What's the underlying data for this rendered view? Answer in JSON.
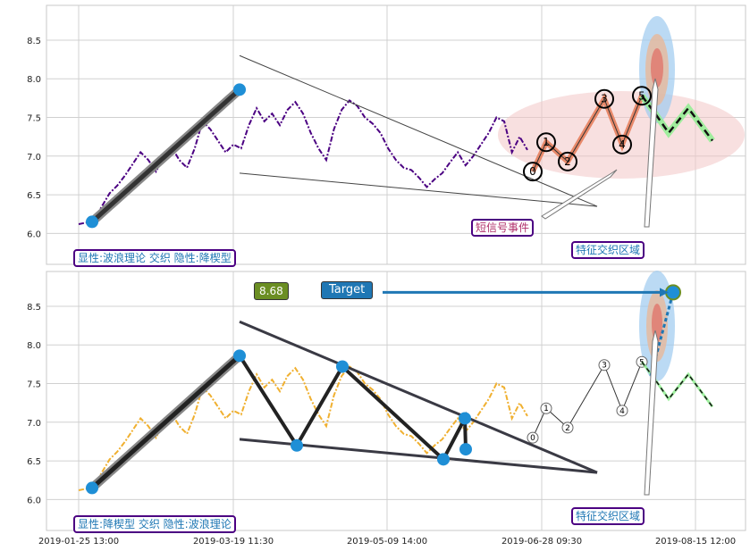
{
  "chart_data": [
    {
      "type": "line",
      "panel": "top",
      "ylim": [
        5.6,
        8.95
      ],
      "yticks": [
        "6.0",
        "6.5",
        "7.0",
        "7.5",
        "8.0",
        "8.5"
      ],
      "grid": true,
      "colors": {
        "price": "#4b0082",
        "impulse": "#e8896a",
        "projection": "#90ee90",
        "zone": "#f3c6c6",
        "marker": "#1f8fd6"
      },
      "series": [
        {
          "values": [
            6.12,
            6.14,
            6.18,
            6.35,
            6.52,
            6.62,
            6.75,
            6.9,
            7.05,
            6.95,
            6.8,
            7.0,
            7.12,
            6.95,
            6.85,
            7.1,
            7.45,
            7.35,
            7.2,
            7.05,
            7.15,
            7.1,
            7.4,
            7.62,
            7.45,
            7.55,
            7.4,
            7.6,
            7.7,
            7.55,
            7.3,
            7.1,
            6.95,
            7.35,
            7.6,
            7.72,
            7.65,
            7.5,
            7.42,
            7.3,
            7.1,
            6.95,
            6.85,
            6.82,
            6.72,
            6.6,
            6.7,
            6.78,
            6.92,
            7.05,
            6.88,
            7.0,
            7.15,
            7.3,
            7.5,
            7.45,
            7.05,
            7.25,
            7.08
          ]
        },
        {
          "values": [
            6.8,
            7.15,
            6.95,
            7.72,
            7.12,
            7.78,
            7.6,
            7.35,
            7.5,
            7.2
          ]
        }
      ],
      "wave_labels": [
        "0",
        "1",
        "2",
        "3",
        "4",
        "5"
      ],
      "wave_values": [
        6.8,
        7.18,
        6.93,
        7.74,
        7.15,
        7.78
      ],
      "trend_upper": [
        8.3,
        6.35
      ],
      "trend_lower": [
        6.78,
        6.35
      ],
      "impulse_line": [
        6.15,
        7.86
      ]
    },
    {
      "type": "line",
      "panel": "bottom",
      "ylim": [
        5.6,
        8.95
      ],
      "yticks": [
        "6.0",
        "6.5",
        "7.0",
        "7.5",
        "8.0",
        "8.5"
      ],
      "xticks": [
        "2019-01-25 13:00",
        "2019-03-19 11:30",
        "2019-05-09 14:00",
        "2019-06-28 09:30",
        "2019-08-15 12:00"
      ],
      "grid": true,
      "colors": {
        "price": "#f0b030",
        "wedge": "#333",
        "marker": "#1f8fd6",
        "target_arrow": "#1f77b4"
      },
      "series": [
        {
          "values": [
            6.12,
            6.14,
            6.18,
            6.35,
            6.52,
            6.62,
            6.75,
            6.9,
            7.05,
            6.95,
            6.8,
            7.0,
            7.12,
            6.95,
            6.85,
            7.1,
            7.45,
            7.35,
            7.2,
            7.05,
            7.15,
            7.1,
            7.4,
            7.62,
            7.45,
            7.55,
            7.4,
            7.6,
            7.7,
            7.55,
            7.3,
            7.1,
            6.95,
            7.35,
            7.6,
            7.72,
            7.65,
            7.5,
            7.42,
            7.3,
            7.1,
            6.95,
            6.85,
            6.82,
            6.72,
            6.6,
            6.7,
            6.78,
            6.92,
            7.05,
            6.88,
            7.0,
            7.15,
            7.3,
            7.5,
            7.45,
            7.05,
            7.25,
            7.08
          ]
        }
      ],
      "wedge_points": [
        6.15,
        7.86,
        6.7,
        7.72,
        6.52,
        7.05,
        6.65
      ],
      "wave_labels": [
        "0",
        "1",
        "2",
        "3",
        "4",
        "5"
      ],
      "target_value": 8.68
    }
  ],
  "top_note": "显性:波浪理论 交织 隐性:降楔型",
  "bottom_note": "显性:降楔型 交织 隐性:波浪理论",
  "event_label": "短信号事件",
  "zone_label_top": "特征交织区域",
  "zone_label_bottom": "特征交织区域",
  "price_label": "8.68",
  "target_label": "Target"
}
